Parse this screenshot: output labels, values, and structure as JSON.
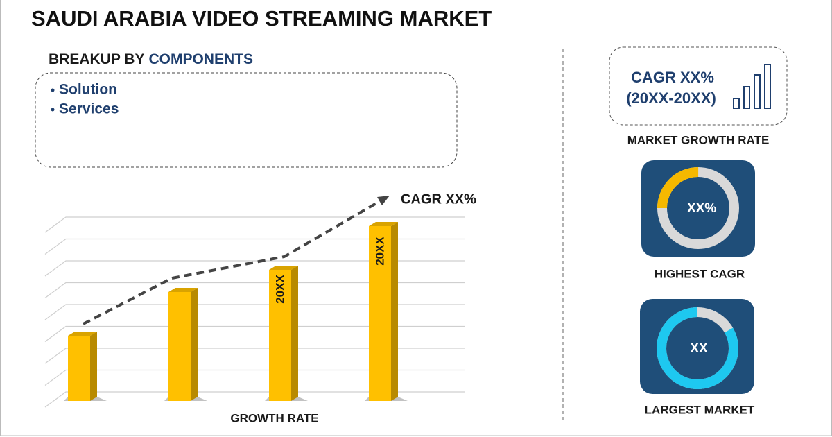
{
  "header": {
    "title": "SAUDI ARABIA VIDEO STREAMING MARKET"
  },
  "breakup": {
    "label": "BREAKUP BY",
    "highlight": "COMPONENTS",
    "items": [
      "Solution",
      "Services"
    ]
  },
  "growth_chart": {
    "bar_labels": [
      "20XX",
      "20XX"
    ],
    "annotation": "CAGR XX%",
    "caption": "GROWTH RATE"
  },
  "sidebar": {
    "cagr": "CAGR XX%",
    "period": "(20XX-20XX)",
    "growth_caption": "MARKET GROWTH RATE",
    "highest_value": "XX%",
    "highest_caption": "HIGHEST CAGR",
    "largest_value": "XX",
    "largest_caption": "LARGEST MARKET"
  }
}
